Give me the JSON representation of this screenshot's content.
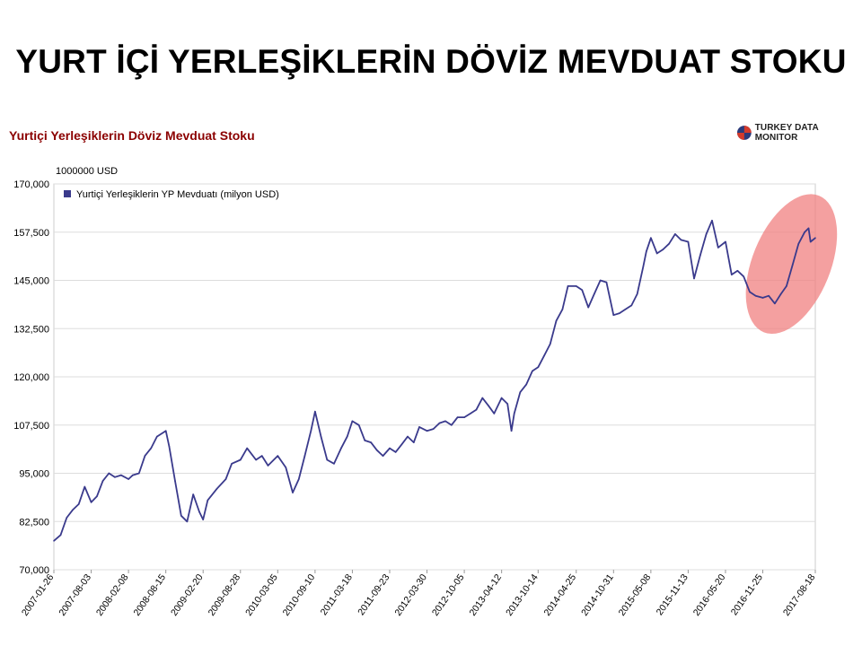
{
  "slide": {
    "title": "YURT İÇİ YERLEŞİKLERİN DÖVİZ MEVDUAT STOKU"
  },
  "header": {
    "chart_title": "Yurtiçi Yerleşiklerin Döviz Mevduat Stoku",
    "logo_text": "TURKEY DATA MONITOR"
  },
  "colors": {
    "series": "#3a3a8c",
    "highlight": "#f08080",
    "grid": "#dddddd",
    "title": "#8b0000"
  },
  "chart_data": {
    "type": "line",
    "unit_label": "1000000 USD",
    "ylim": [
      70000,
      170000
    ],
    "y_ticks": [
      "70,000",
      "82,500",
      "95,000",
      "107,500",
      "120,000",
      "132,500",
      "145,000",
      "157,500",
      "170,000"
    ],
    "y_tick_values": [
      70000,
      82500,
      95000,
      107500,
      120000,
      132500,
      145000,
      157500,
      170000
    ],
    "x_range": [
      "2007-01-26",
      "2017-08-18"
    ],
    "x_tick_labels": [
      "2007-01-26",
      "2007-08-03",
      "2008-02-08",
      "2008-08-15",
      "2009-02-20",
      "2009-08-28",
      "2010-03-05",
      "2010-09-10",
      "2011-03-18",
      "2011-09-23",
      "2012-03-30",
      "2012-10-05",
      "2013-04-12",
      "2013-10-14",
      "2014-04-25",
      "2014-10-31",
      "2015-05-08",
      "2015-11-13",
      "2016-05-20",
      "2016-11-25",
      "2017-08-18"
    ],
    "grid": true,
    "legend_position": "top-left",
    "highlight": {
      "label": "",
      "x_from": "2016-12-01",
      "x_to": "2017-08-18"
    },
    "series": [
      {
        "name": "Yurtiçi Yerleşiklerin YP Mevduatı (milyon USD)",
        "points": [
          [
            "2007-01-26",
            77500
          ],
          [
            "2007-03-01",
            79000
          ],
          [
            "2007-04-01",
            83500
          ],
          [
            "2007-05-01",
            85500
          ],
          [
            "2007-06-01",
            87000
          ],
          [
            "2007-07-01",
            91500
          ],
          [
            "2007-08-03",
            87500
          ],
          [
            "2007-09-01",
            89000
          ],
          [
            "2007-10-01",
            93000
          ],
          [
            "2007-11-01",
            95000
          ],
          [
            "2007-12-01",
            94000
          ],
          [
            "2008-01-01",
            94500
          ],
          [
            "2008-02-08",
            93500
          ],
          [
            "2008-03-01",
            94500
          ],
          [
            "2008-04-01",
            95000
          ],
          [
            "2008-05-01",
            99500
          ],
          [
            "2008-06-01",
            101500
          ],
          [
            "2008-07-01",
            104500
          ],
          [
            "2008-08-15",
            106000
          ],
          [
            "2008-09-01",
            102000
          ],
          [
            "2008-10-01",
            93000
          ],
          [
            "2008-11-01",
            84000
          ],
          [
            "2008-12-01",
            82500
          ],
          [
            "2009-01-01",
            89500
          ],
          [
            "2009-02-01",
            85000
          ],
          [
            "2009-02-20",
            83000
          ],
          [
            "2009-03-15",
            88000
          ],
          [
            "2009-05-01",
            91000
          ],
          [
            "2009-06-15",
            93500
          ],
          [
            "2009-07-15",
            97500
          ],
          [
            "2009-08-28",
            98500
          ],
          [
            "2009-10-01",
            101500
          ],
          [
            "2009-11-15",
            98500
          ],
          [
            "2009-12-15",
            99500
          ],
          [
            "2010-01-15",
            97000
          ],
          [
            "2010-03-05",
            99500
          ],
          [
            "2010-04-15",
            96500
          ],
          [
            "2010-05-20",
            90000
          ],
          [
            "2010-06-20",
            93500
          ],
          [
            "2010-07-20",
            99500
          ],
          [
            "2010-08-20",
            106000
          ],
          [
            "2010-09-10",
            111000
          ],
          [
            "2010-10-10",
            104500
          ],
          [
            "2010-11-10",
            98500
          ],
          [
            "2010-12-15",
            97500
          ],
          [
            "2011-01-20",
            101500
          ],
          [
            "2011-02-20",
            104500
          ],
          [
            "2011-03-18",
            108500
          ],
          [
            "2011-04-20",
            107500
          ],
          [
            "2011-05-20",
            103500
          ],
          [
            "2011-06-20",
            103000
          ],
          [
            "2011-07-20",
            101000
          ],
          [
            "2011-08-20",
            99500
          ],
          [
            "2011-09-23",
            101500
          ],
          [
            "2011-10-23",
            100500
          ],
          [
            "2011-11-23",
            102500
          ],
          [
            "2011-12-23",
            104500
          ],
          [
            "2012-01-23",
            103000
          ],
          [
            "2012-02-20",
            107000
          ],
          [
            "2012-03-30",
            106000
          ],
          [
            "2012-05-01",
            106500
          ],
          [
            "2012-06-01",
            108000
          ],
          [
            "2012-07-01",
            108500
          ],
          [
            "2012-08-01",
            107500
          ],
          [
            "2012-09-01",
            109500
          ],
          [
            "2012-10-05",
            109500
          ],
          [
            "2012-11-05",
            110500
          ],
          [
            "2012-12-05",
            111500
          ],
          [
            "2013-01-05",
            114500
          ],
          [
            "2013-02-05",
            112500
          ],
          [
            "2013-03-05",
            110500
          ],
          [
            "2013-04-12",
            114500
          ],
          [
            "2013-05-12",
            113000
          ],
          [
            "2013-06-01",
            106000
          ],
          [
            "2013-06-15",
            110500
          ],
          [
            "2013-07-15",
            116000
          ],
          [
            "2013-08-15",
            118000
          ],
          [
            "2013-09-15",
            121500
          ],
          [
            "2013-10-14",
            122500
          ],
          [
            "2013-11-14",
            125500
          ],
          [
            "2013-12-14",
            128500
          ],
          [
            "2014-01-14",
            134500
          ],
          [
            "2014-02-14",
            137500
          ],
          [
            "2014-03-14",
            143500
          ],
          [
            "2014-04-25",
            143500
          ],
          [
            "2014-05-25",
            142500
          ],
          [
            "2014-06-25",
            138000
          ],
          [
            "2014-07-25",
            141500
          ],
          [
            "2014-08-25",
            145000
          ],
          [
            "2014-09-25",
            144500
          ],
          [
            "2014-10-31",
            136000
          ],
          [
            "2014-11-30",
            136500
          ],
          [
            "2014-12-30",
            137500
          ],
          [
            "2015-01-30",
            138500
          ],
          [
            "2015-02-28",
            141500
          ],
          [
            "2015-03-30",
            148500
          ],
          [
            "2015-04-15",
            152500
          ],
          [
            "2015-05-08",
            156000
          ],
          [
            "2015-06-08",
            152000
          ],
          [
            "2015-07-08",
            153000
          ],
          [
            "2015-08-08",
            154500
          ],
          [
            "2015-09-08",
            157000
          ],
          [
            "2015-10-08",
            155500
          ],
          [
            "2015-11-13",
            155000
          ],
          [
            "2015-12-13",
            145500
          ],
          [
            "2016-01-13",
            151500
          ],
          [
            "2016-02-13",
            157000
          ],
          [
            "2016-03-13",
            160500
          ],
          [
            "2016-04-13",
            153500
          ],
          [
            "2016-05-20",
            155000
          ],
          [
            "2016-06-20",
            146500
          ],
          [
            "2016-07-20",
            147500
          ],
          [
            "2016-08-20",
            146000
          ],
          [
            "2016-09-20",
            142000
          ],
          [
            "2016-10-20",
            141000
          ],
          [
            "2016-11-25",
            140500
          ],
          [
            "2016-12-25",
            141000
          ],
          [
            "2017-01-25",
            139000
          ],
          [
            "2017-02-25",
            141500
          ],
          [
            "2017-03-25",
            143500
          ],
          [
            "2017-04-25",
            149000
          ],
          [
            "2017-05-25",
            154500
          ],
          [
            "2017-06-25",
            157500
          ],
          [
            "2017-07-15",
            158500
          ],
          [
            "2017-07-25",
            155000
          ],
          [
            "2017-08-18",
            156000
          ]
        ]
      }
    ]
  }
}
